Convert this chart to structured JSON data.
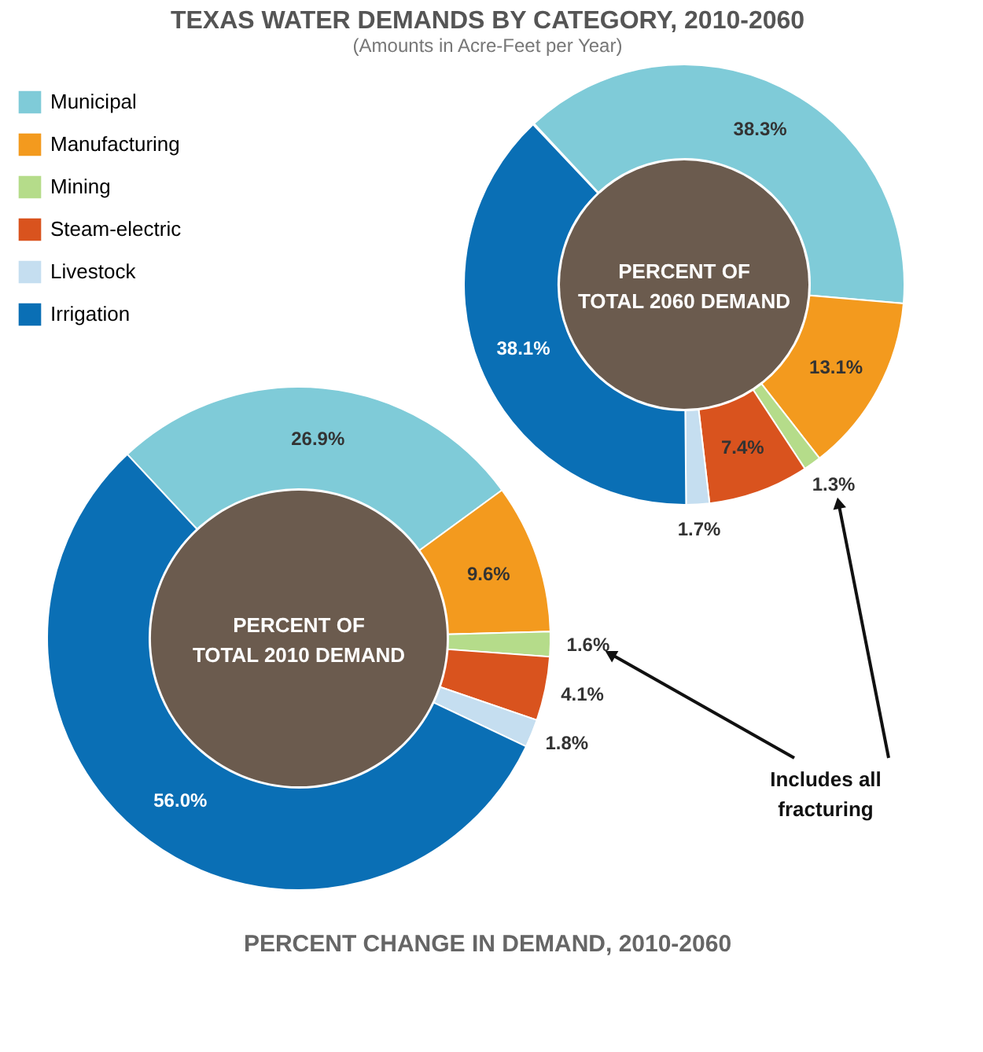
{
  "chart_data": {
    "type": "donut",
    "title": "TEXAS WATER DEMANDS BY CATEGORY, 2010-2060",
    "subtitle": "(Amounts in Acre-Feet per Year)",
    "categories": [
      "Municipal",
      "Manufacturing",
      "Mining",
      "Steam-electric",
      "Livestock",
      "Irrigation"
    ],
    "colors": [
      "#7fcbd8",
      "#f39a1e",
      "#b5dc8a",
      "#d9531e",
      "#c5def0",
      "#0a6fb5"
    ],
    "legend": "top-left",
    "series": [
      {
        "name": "PERCENT OF\nTOTAL 2060 DEMAND",
        "values": [
          38.3,
          13.1,
          1.3,
          7.4,
          1.7,
          38.1
        ],
        "value_labels": [
          "38.3%",
          "13.1%",
          "1.3%",
          "7.4%",
          "1.7%",
          "38.1%"
        ]
      },
      {
        "name": "PERCENT OF\nTOTAL 2010 DEMAND",
        "values": [
          26.9,
          9.6,
          1.6,
          4.1,
          1.8,
          56.0
        ],
        "value_labels": [
          "26.9%",
          "9.6%",
          "1.6%",
          "4.1%",
          "1.8%",
          "56.0%"
        ]
      }
    ],
    "annotations": [
      {
        "text": "Includes all\nfracturing",
        "x": "Mining"
      },
      "PERCENT CHANGE IN DEMAND, 2010-2060"
    ]
  }
}
